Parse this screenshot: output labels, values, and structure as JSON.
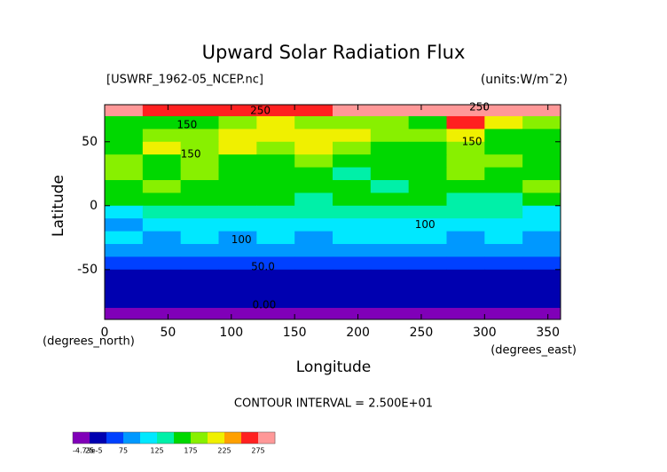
{
  "chart_data": {
    "type": "contour",
    "title": "Upward Solar Radiation Flux",
    "subtitle_left": "[USWRF_1962-05_NCEP.nc]",
    "subtitle_right": "(units:W/m¯2)",
    "xlabel": "Longitude",
    "ylabel": "Latitude",
    "x_unit_label": "(degrees_east)",
    "y_unit_label": "(degrees_north)",
    "footer": "CONTOUR INTERVAL = 2.500E+01",
    "xlim": [
      0,
      360
    ],
    "xticks": [
      0,
      50,
      100,
      150,
      200,
      250,
      300,
      350
    ],
    "ylim": [
      -89,
      79
    ],
    "yticks": [
      -50,
      0,
      50
    ],
    "lons": [
      0,
      30,
      60,
      90,
      120,
      150,
      180,
      210,
      240,
      270,
      300,
      330
    ],
    "lats": [
      75,
      65,
      55,
      45,
      35,
      25,
      15,
      5,
      -5,
      -15,
      -25,
      -35,
      -45,
      -55,
      -65,
      -75,
      -85
    ],
    "values": [
      [
        280,
        270,
        265,
        265,
        270,
        270,
        275,
        280,
        285,
        290,
        280,
        275
      ],
      [
        170,
        160,
        150,
        180,
        200,
        190,
        185,
        180,
        160,
        250,
        200,
        175
      ],
      [
        160,
        175,
        190,
        200,
        215,
        220,
        210,
        195,
        175,
        200,
        170,
        160
      ],
      [
        150,
        200,
        180,
        210,
        190,
        200,
        180,
        170,
        160,
        180,
        165,
        150
      ],
      [
        175,
        170,
        180,
        160,
        150,
        175,
        165,
        150,
        170,
        175,
        185,
        160
      ],
      [
        185,
        160,
        175,
        170,
        155,
        150,
        145,
        160,
        150,
        175,
        165,
        170
      ],
      [
        170,
        180,
        160,
        150,
        160,
        155,
        150,
        145,
        160,
        150,
        165,
        175
      ],
      [
        160,
        155,
        150,
        160,
        150,
        145,
        150,
        155,
        150,
        140,
        145,
        155
      ],
      [
        110,
        130,
        140,
        135,
        125,
        130,
        135,
        130,
        125,
        140,
        130,
        120
      ],
      [
        95,
        110,
        100,
        120,
        110,
        105,
        115,
        110,
        100,
        120,
        115,
        105
      ],
      [
        100,
        95,
        105,
        90,
        100,
        95,
        100,
        105,
        110,
        95,
        100,
        95
      ],
      [
        85,
        80,
        85,
        80,
        75,
        80,
        80,
        85,
        80,
        85,
        80,
        85
      ],
      [
        65,
        60,
        65,
        60,
        60,
        65,
        60,
        60,
        65,
        60,
        65,
        60
      ],
      [
        40,
        40,
        40,
        40,
        40,
        40,
        40,
        40,
        40,
        40,
        40,
        40
      ],
      [
        35,
        35,
        35,
        35,
        35,
        35,
        35,
        35,
        35,
        35,
        35,
        35
      ],
      [
        30,
        30,
        30,
        30,
        30,
        30,
        30,
        30,
        30,
        30,
        30,
        30
      ],
      [
        10,
        10,
        10,
        10,
        10,
        10,
        10,
        10,
        10,
        10,
        10,
        10
      ]
    ],
    "annotations": [
      {
        "text": "250",
        "x": 123,
        "y": 74
      },
      {
        "text": "150",
        "x": 65,
        "y": 63
      },
      {
        "text": "150",
        "x": 68,
        "y": 40
      },
      {
        "text": "250",
        "x": 296,
        "y": 77
      },
      {
        "text": "150",
        "x": 290,
        "y": 50
      },
      {
        "text": "100",
        "x": 108,
        "y": -27
      },
      {
        "text": "100",
        "x": 253,
        "y": -15
      },
      {
        "text": "50.0",
        "x": 125,
        "y": -48
      },
      {
        "text": "0.00",
        "x": 126,
        "y": -78
      }
    ],
    "levels": [
      -4.73e-05,
      25,
      50,
      75,
      100,
      125,
      150,
      175,
      200,
      225,
      250,
      275,
      300
    ],
    "colors": [
      "#8000b8",
      "#0000b0",
      "#0040ff",
      "#0098ff",
      "#00e8ff",
      "#00f0a8",
      "#00d800",
      "#88f000",
      "#f0f000",
      "#ffa000",
      "#ff2020",
      "#ff9898"
    ],
    "colorbar_ticks": [
      {
        "value": -4.73e-05,
        "label": "-4.73e-5"
      },
      25,
      75,
      125,
      175,
      225,
      275
    ]
  }
}
